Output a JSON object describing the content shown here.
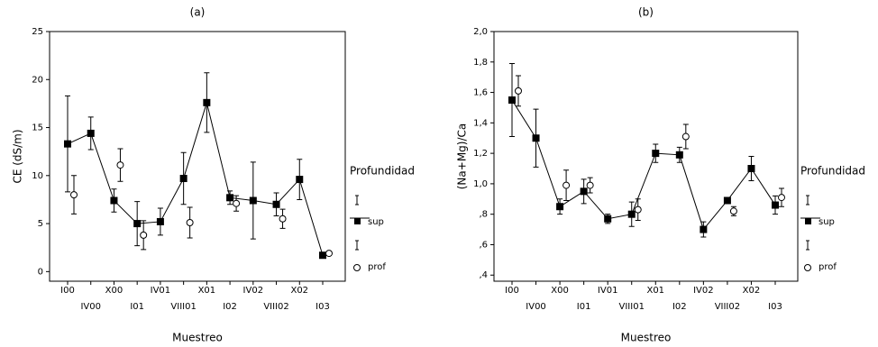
{
  "chart_data": [
    {
      "type": "errorline",
      "title": "(a)",
      "x_label": "Muestreo",
      "y_label": "CE (dS/m)",
      "legend_title": "Profundidad",
      "categories": [
        "I00",
        "IV00",
        "X00",
        "I01",
        "IV01",
        "VIII01",
        "X01",
        "I02",
        "IV02",
        "VIII02",
        "X02",
        "I03"
      ],
      "ylim": [
        -1,
        25
      ],
      "yticks": [
        0,
        5,
        10,
        15,
        20,
        25
      ],
      "series": [
        {
          "name": "sup",
          "color": "#000000",
          "values": [
            13.3,
            14.4,
            7.4,
            5.0,
            5.2,
            9.7,
            17.6,
            7.7,
            7.4,
            7.0,
            9.6,
            1.7
          ],
          "errors": [
            5.0,
            1.7,
            1.2,
            2.3,
            1.4,
            2.7,
            3.1,
            0.7,
            4.0,
            1.2,
            2.1,
            0.2
          ]
        },
        {
          "name": "prof",
          "color": "#000000",
          "values": [
            8.0,
            null,
            11.1,
            3.8,
            null,
            5.1,
            null,
            7.1,
            null,
            5.5,
            null,
            1.9
          ],
          "errors": [
            2.0,
            null,
            1.7,
            1.5,
            null,
            1.6,
            null,
            0.8,
            null,
            1.0,
            null,
            0.2
          ]
        }
      ]
    },
    {
      "type": "errorline",
      "title": "(b)",
      "x_label": "Muestreo",
      "y_label": "(Na+Mg)/Ca",
      "legend_title": "Profundidad",
      "categories": [
        "I00",
        "IV00",
        "X00",
        "I01",
        "IV01",
        "VIII01",
        "X01",
        "I02",
        "IV02",
        "VIII02",
        "X02",
        "I03"
      ],
      "ylim": [
        0.36,
        2.0
      ],
      "yticks": [
        {
          "value": 0.4,
          "label": ",4"
        },
        {
          "value": 0.6,
          "label": ",6"
        },
        {
          "value": 0.8,
          "label": ",8"
        },
        {
          "value": 1.0,
          "label": "1,0"
        },
        {
          "value": 1.2,
          "label": "1,2"
        },
        {
          "value": 1.4,
          "label": "1,4"
        },
        {
          "value": 1.6,
          "label": "1,6"
        },
        {
          "value": 1.8,
          "label": "1,8"
        },
        {
          "value": 2.0,
          "label": "2,0"
        }
      ],
      "series": [
        {
          "name": "sup",
          "color": "#000000",
          "values": [
            1.55,
            1.3,
            0.85,
            0.95,
            0.77,
            0.8,
            1.2,
            1.19,
            0.7,
            0.89,
            1.1,
            0.86
          ],
          "errors": [
            0.24,
            0.19,
            0.05,
            0.08,
            0.03,
            0.08,
            0.06,
            0.05,
            0.05,
            0.02,
            0.08,
            0.06
          ]
        },
        {
          "name": "prof",
          "color": "#000000",
          "values": [
            1.61,
            null,
            0.99,
            0.99,
            null,
            0.83,
            null,
            1.31,
            null,
            0.82,
            null,
            0.91
          ],
          "errors": [
            0.1,
            null,
            0.1,
            0.05,
            null,
            0.07,
            null,
            0.08,
            null,
            0.03,
            null,
            0.06
          ]
        }
      ]
    }
  ]
}
